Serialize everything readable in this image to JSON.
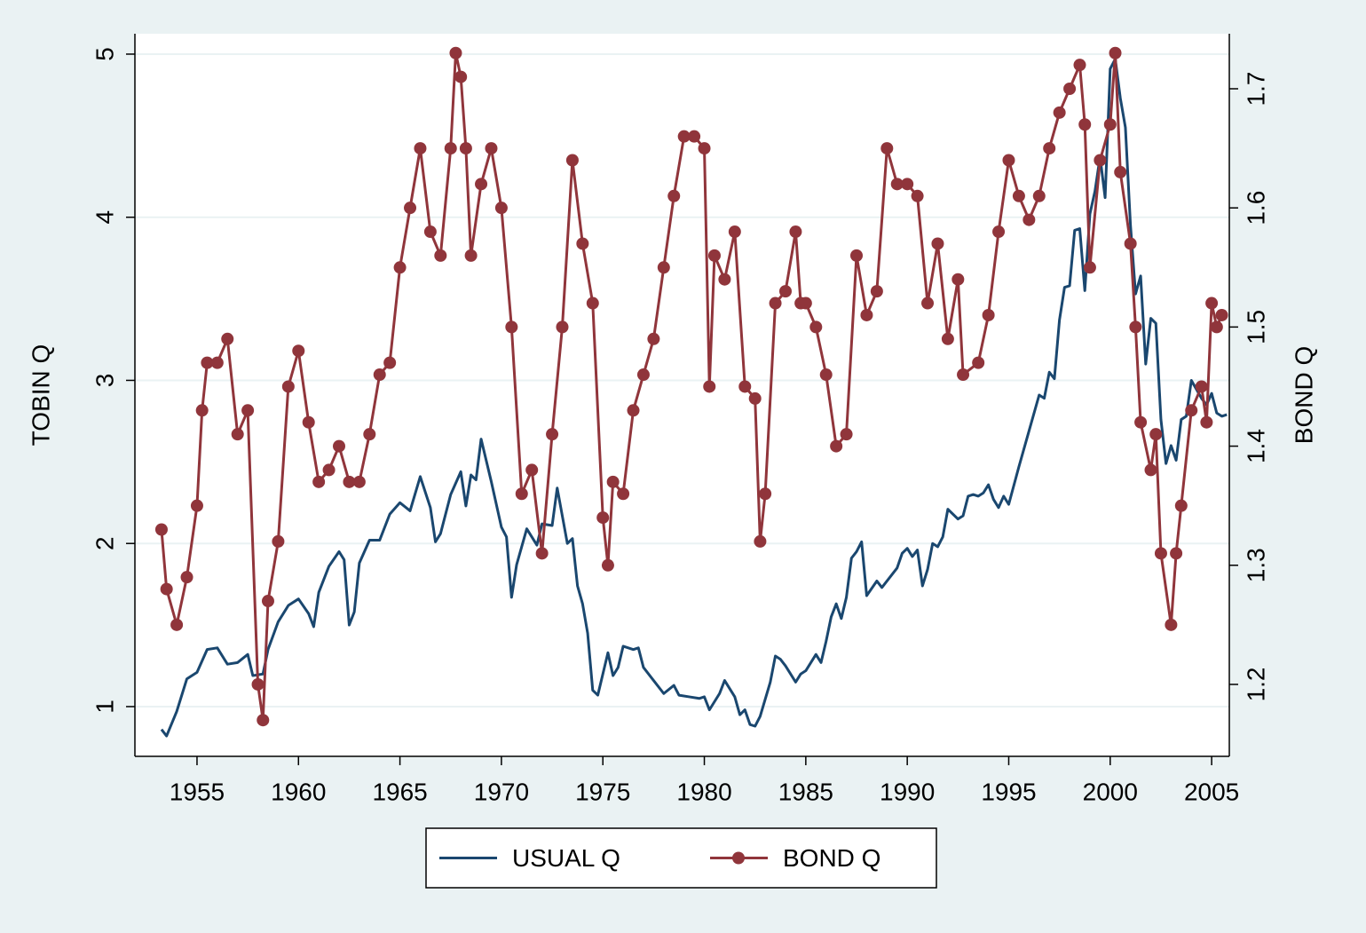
{
  "chart_data": {
    "type": "line",
    "xlim": [
      1951.94,
      2005.87
    ],
    "xticks": [
      1955,
      1960,
      1965,
      1970,
      1975,
      1980,
      1985,
      1990,
      1995,
      2000,
      2005
    ],
    "ylim": [
      0.695,
      5.125
    ],
    "yticks": [
      1,
      2,
      3,
      4,
      5
    ],
    "y2lim": [
      1.1396,
      1.7462
    ],
    "y2ticks": [
      1.2,
      1.3,
      1.4,
      1.5,
      1.6,
      1.7
    ],
    "ylabel": "TOBIN Q",
    "y2label": "BOND Q",
    "grid": true,
    "legend": "bottom",
    "series": [
      {
        "name": "USUAL Q",
        "color": "#1a476f",
        "markers": false,
        "x": [
          1953.25,
          1953.5,
          1954,
          1954.5,
          1955,
          1955.5,
          1956,
          1956.5,
          1957,
          1957.5,
          1957.75,
          1958.25,
          1958.5,
          1959,
          1959.5,
          1960,
          1960.5,
          1960.75,
          1961,
          1961.5,
          1962,
          1962.25,
          1962.5,
          1962.75,
          1963,
          1963.5,
          1964,
          1964.5,
          1965,
          1965.5,
          1966,
          1966.5,
          1966.75,
          1967,
          1967.5,
          1968,
          1968.25,
          1968.5,
          1968.75,
          1969,
          1969.5,
          1970,
          1970.25,
          1970.5,
          1970.75,
          1971.25,
          1971.75,
          1972,
          1972.5,
          1972.75,
          1973.25,
          1973.5,
          1973.75,
          1974,
          1974.25,
          1974.5,
          1974.75,
          1975.25,
          1975.5,
          1975.75,
          1976,
          1976.5,
          1976.75,
          1977,
          1977.5,
          1978,
          1978.5,
          1978.75,
          1979.25,
          1979.75,
          1980,
          1980.25,
          1980.75,
          1981,
          1981.5,
          1981.75,
          1982,
          1982.25,
          1982.5,
          1982.75,
          1983.25,
          1983.5,
          1983.75,
          1984,
          1984.5,
          1984.75,
          1985,
          1985.5,
          1985.75,
          1986,
          1986.25,
          1986.5,
          1986.75,
          1987,
          1987.25,
          1987.5,
          1987.75,
          1988,
          1988.5,
          1988.75,
          1989.5,
          1989.75,
          1990,
          1990.25,
          1990.5,
          1990.75,
          1991,
          1991.25,
          1991.5,
          1991.75,
          1992,
          1992.5,
          1992.75,
          1993,
          1993.25,
          1993.5,
          1993.75,
          1994,
          1994.25,
          1994.5,
          1994.75,
          1995,
          1995.5,
          1996,
          1996.5,
          1996.75,
          1997,
          1997.25,
          1997.5,
          1997.75,
          1998,
          1998.25,
          1998.5,
          1998.75,
          1999,
          1999.25,
          1999.5,
          1999.75,
          2000,
          2000.25,
          2000.5,
          2000.75,
          2001,
          2001.25,
          2001.5,
          2001.75,
          2002,
          2002.25,
          2002.5,
          2002.75,
          2003,
          2003.25,
          2003.5,
          2003.75,
          2004,
          2004.5,
          2004.75,
          2005,
          2005.25,
          2005.5,
          2005.75
        ],
        "values": [
          0.86,
          0.82,
          0.97,
          1.17,
          1.21,
          1.35,
          1.36,
          1.26,
          1.27,
          1.32,
          1.19,
          1.2,
          1.35,
          1.52,
          1.62,
          1.66,
          1.57,
          1.49,
          1.7,
          1.86,
          1.95,
          1.9,
          1.5,
          1.58,
          1.88,
          2.02,
          2.02,
          2.18,
          2.25,
          2.2,
          2.41,
          2.22,
          2.01,
          2.06,
          2.3,
          2.44,
          2.23,
          2.42,
          2.39,
          2.64,
          2.38,
          2.1,
          2.04,
          1.67,
          1.87,
          2.09,
          1.99,
          2.12,
          2.11,
          2.34,
          2.0,
          2.03,
          1.74,
          1.63,
          1.45,
          1.1,
          1.07,
          1.33,
          1.19,
          1.24,
          1.37,
          1.35,
          1.36,
          1.24,
          1.16,
          1.08,
          1.13,
          1.07,
          1.06,
          1.05,
          1.06,
          0.98,
          1.08,
          1.16,
          1.06,
          0.95,
          0.98,
          0.89,
          0.88,
          0.94,
          1.15,
          1.31,
          1.29,
          1.25,
          1.15,
          1.2,
          1.22,
          1.32,
          1.27,
          1.4,
          1.55,
          1.63,
          1.54,
          1.67,
          1.91,
          1.95,
          2.01,
          1.68,
          1.77,
          1.73,
          1.85,
          1.94,
          1.97,
          1.92,
          1.96,
          1.74,
          1.84,
          2.0,
          1.98,
          2.04,
          2.21,
          2.15,
          2.17,
          2.29,
          2.3,
          2.29,
          2.31,
          2.36,
          2.27,
          2.22,
          2.29,
          2.24,
          2.47,
          2.69,
          2.91,
          2.89,
          3.05,
          3.01,
          3.37,
          3.57,
          3.58,
          3.92,
          3.93,
          3.55,
          4.02,
          4.16,
          4.37,
          4.12,
          4.91,
          4.97,
          4.73,
          4.55,
          3.95,
          3.53,
          3.64,
          3.1,
          3.38,
          3.35,
          2.76,
          2.49,
          2.6,
          2.51,
          2.76,
          2.78,
          3.0,
          2.89,
          2.85,
          2.92,
          2.8,
          2.78,
          2.79
        ]
      },
      {
        "name": "BOND Q",
        "color": "#90353b",
        "markers": true,
        "axis": "y2",
        "x": [
          1953.25,
          1953.5,
          1954,
          1954.5,
          1955,
          1955.25,
          1955.5,
          1956,
          1956.5,
          1957,
          1957.5,
          1958,
          1958.25,
          1958.5,
          1959,
          1959.5,
          1960,
          1960.5,
          1961,
          1961.5,
          1962,
          1962.5,
          1963,
          1963.5,
          1964,
          1964.5,
          1965,
          1965.5,
          1966,
          1966.5,
          1967,
          1967.5,
          1967.75,
          1968,
          1968.25,
          1968.5,
          1969,
          1969.5,
          1970,
          1970.5,
          1971,
          1971.5,
          1972,
          1972.5,
          1973,
          1973.5,
          1974,
          1974.5,
          1975,
          1975.25,
          1975.5,
          1976,
          1976.5,
          1977,
          1977.5,
          1978,
          1978.5,
          1979,
          1979.5,
          1980,
          1980.25,
          1980.5,
          1981,
          1981.5,
          1982,
          1982.5,
          1982.75,
          1983,
          1983.5,
          1984,
          1984.5,
          1984.75,
          1985,
          1985.5,
          1986,
          1986.5,
          1987,
          1987.5,
          1988,
          1988.5,
          1989,
          1989.5,
          1990,
          1990.5,
          1991,
          1991.5,
          1992,
          1992.5,
          1992.75,
          1993.5,
          1994,
          1994.5,
          1995,
          1995.5,
          1996,
          1996.5,
          1997,
          1997.5,
          1998,
          1998.5,
          1998.75,
          1999,
          1999.5,
          2000,
          2000.25,
          2000.5,
          2001,
          2001.25,
          2001.5,
          2002,
          2002.25,
          2002.5,
          2003,
          2003.25,
          2003.5,
          2004,
          2004.5,
          2004.75,
          2005,
          2005.25,
          2005.5
        ],
        "values": [
          1.33,
          1.28,
          1.25,
          1.29,
          1.35,
          1.43,
          1.47,
          1.47,
          1.49,
          1.41,
          1.43,
          1.2,
          1.17,
          1.27,
          1.32,
          1.45,
          1.48,
          1.42,
          1.37,
          1.38,
          1.4,
          1.37,
          1.37,
          1.41,
          1.46,
          1.47,
          1.55,
          1.6,
          1.65,
          1.58,
          1.56,
          1.65,
          1.73,
          1.71,
          1.65,
          1.56,
          1.62,
          1.65,
          1.6,
          1.5,
          1.36,
          1.38,
          1.31,
          1.41,
          1.5,
          1.64,
          1.57,
          1.52,
          1.34,
          1.3,
          1.37,
          1.36,
          1.43,
          1.46,
          1.49,
          1.55,
          1.61,
          1.66,
          1.66,
          1.65,
          1.45,
          1.56,
          1.54,
          1.58,
          1.45,
          1.44,
          1.32,
          1.36,
          1.52,
          1.53,
          1.58,
          1.52,
          1.52,
          1.5,
          1.46,
          1.4,
          1.41,
          1.56,
          1.51,
          1.53,
          1.65,
          1.62,
          1.62,
          1.61,
          1.52,
          1.57,
          1.49,
          1.54,
          1.46,
          1.47,
          1.51,
          1.58,
          1.64,
          1.61,
          1.59,
          1.61,
          1.65,
          1.68,
          1.7,
          1.72,
          1.67,
          1.55,
          1.64,
          1.67,
          1.73,
          1.63,
          1.57,
          1.5,
          1.42,
          1.38,
          1.41,
          1.31,
          1.25,
          1.31,
          1.35,
          1.43,
          1.45,
          1.42,
          1.52,
          1.5,
          1.51
        ]
      }
    ]
  }
}
